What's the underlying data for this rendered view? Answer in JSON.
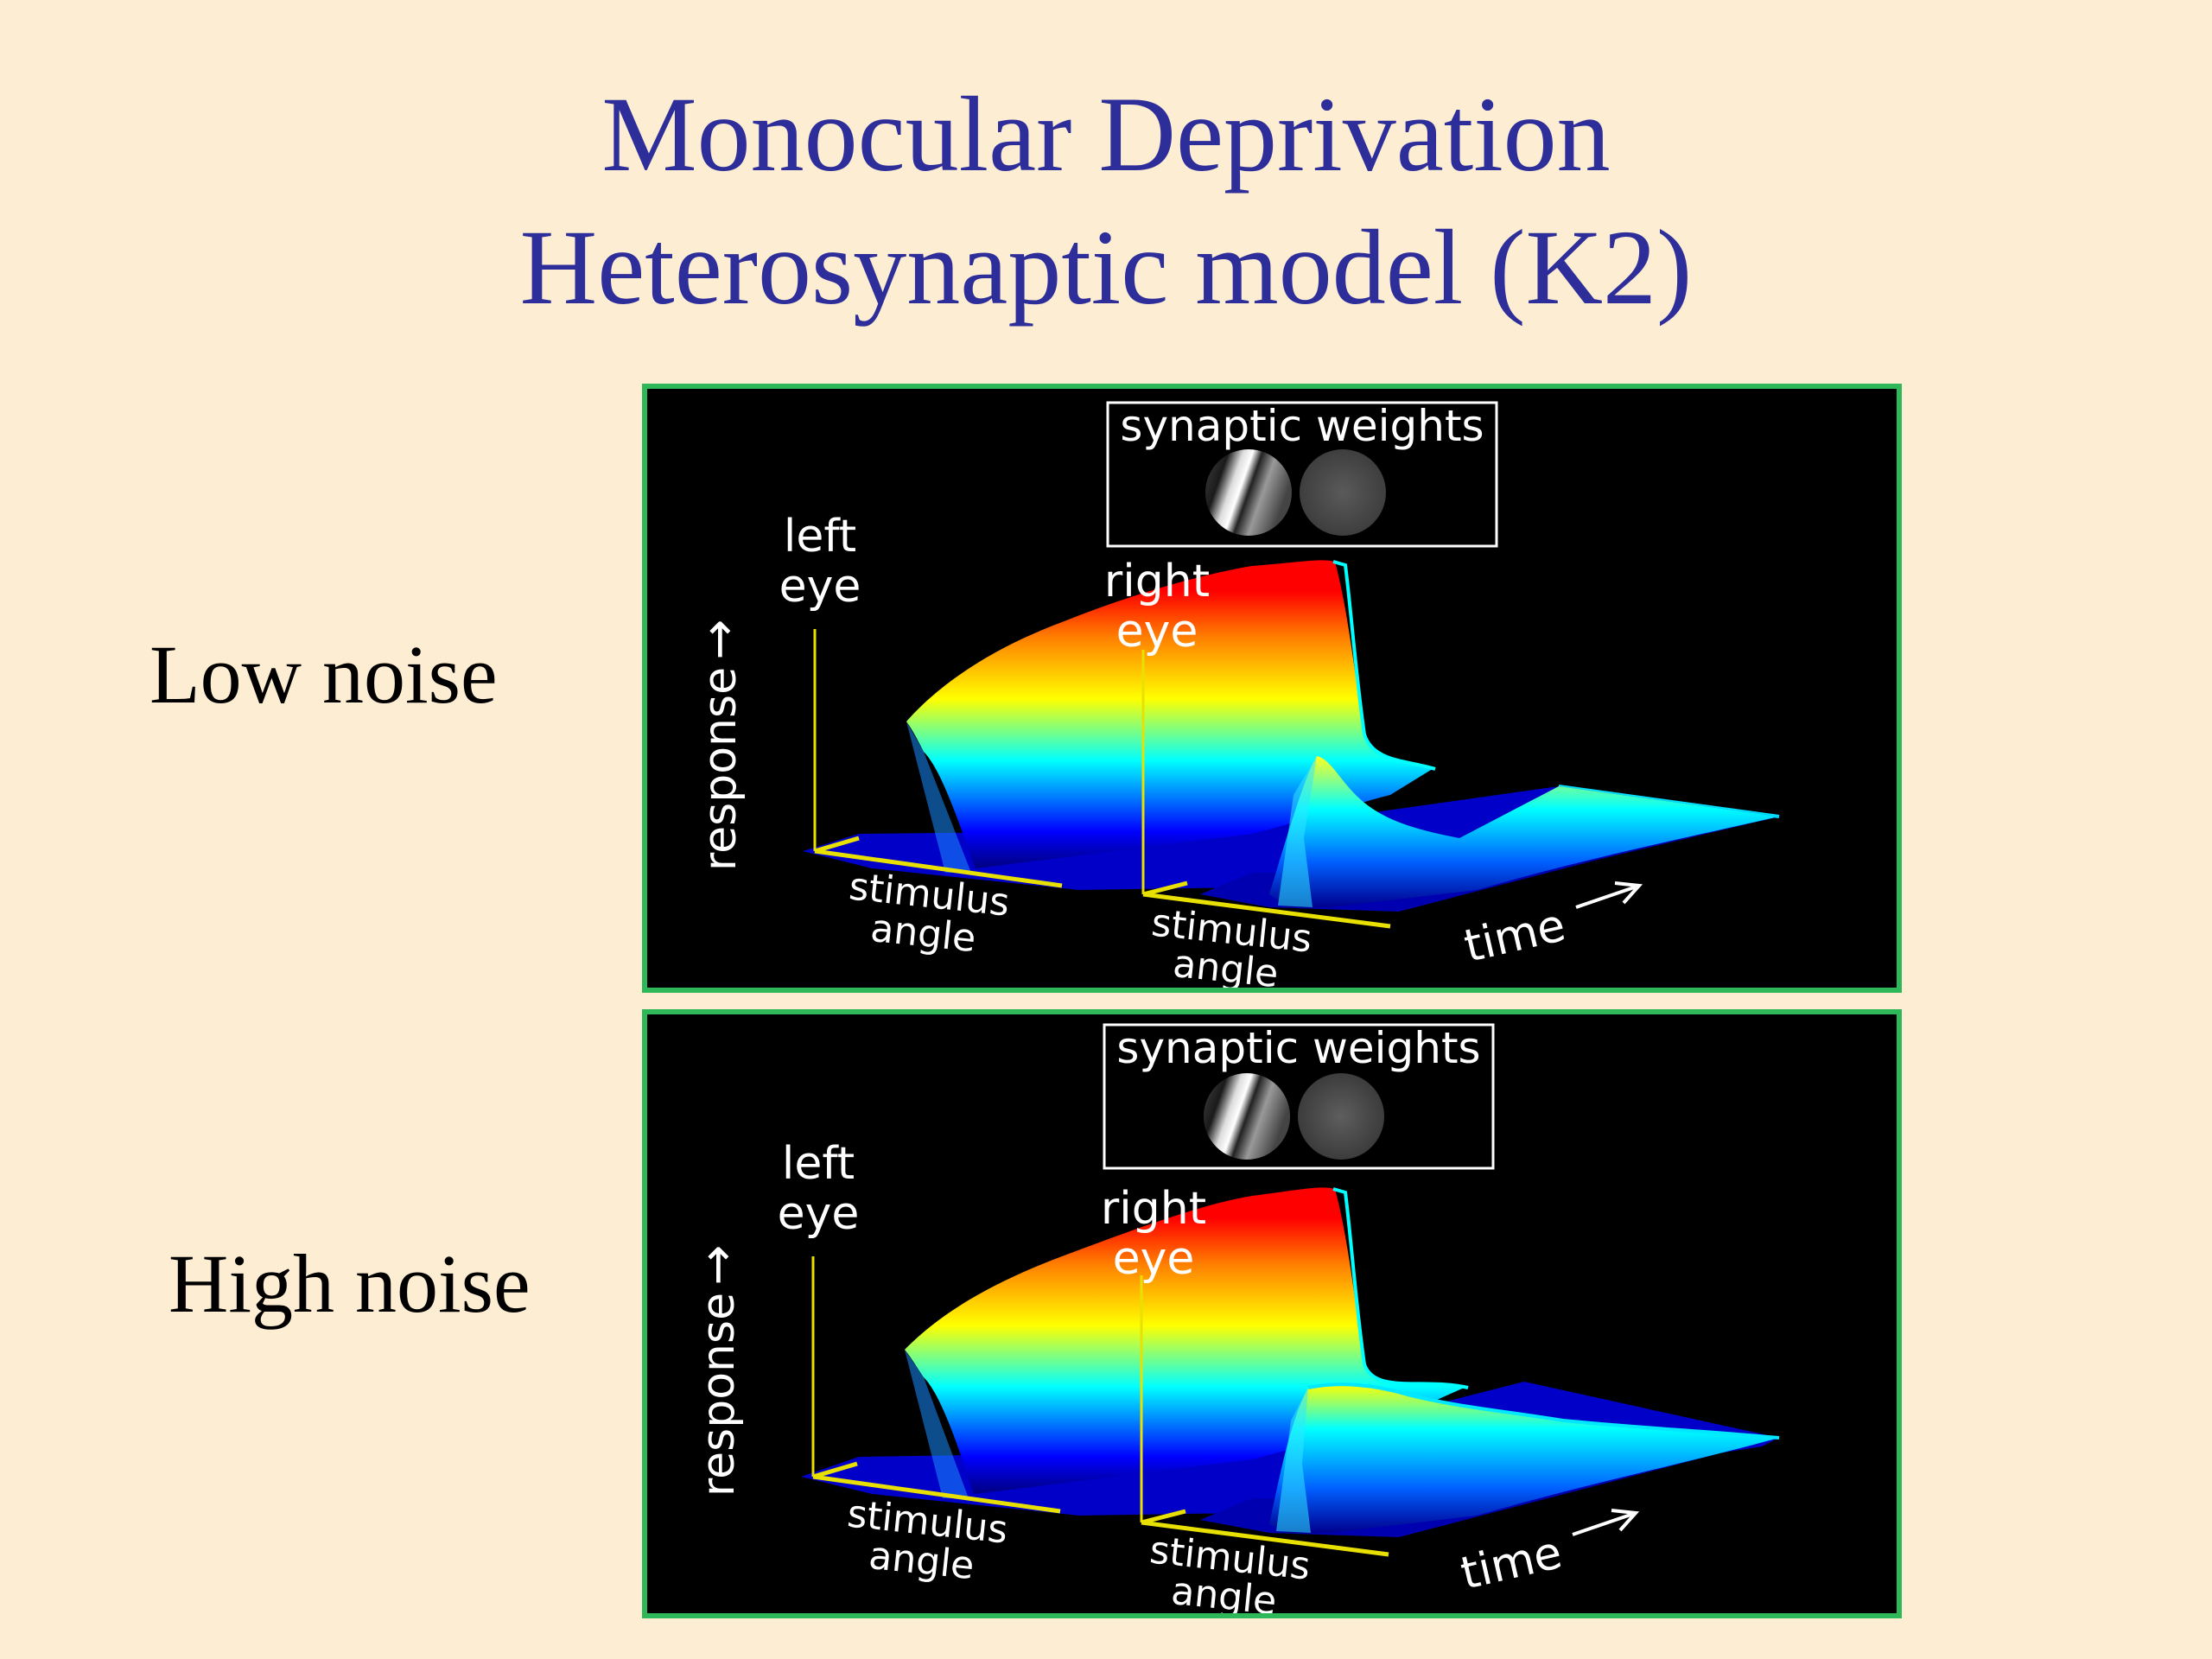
{
  "title": {
    "line1": "Monocular Deprivation",
    "line2": "Heterosynaptic model (K2)"
  },
  "panels": [
    {
      "row_label": "Low noise",
      "weights_label": "synaptic weights",
      "axis_response": "response",
      "left_eye_label_1": "left",
      "left_eye_label_2": "eye",
      "right_eye_label_1": "right",
      "right_eye_label_2": "eye",
      "stimulus_label_1": "stimulus",
      "stimulus_label_2": "angle",
      "time_label": "time"
    },
    {
      "row_label": "High noise",
      "weights_label": "synaptic weights",
      "axis_response": "response",
      "left_eye_label_1": "left",
      "left_eye_label_2": "eye",
      "right_eye_label_1": "right",
      "right_eye_label_2": "eye",
      "stimulus_label_1": "stimulus",
      "stimulus_label_2": "angle",
      "time_label": "time"
    }
  ],
  "colors": {
    "title": "#2e2e9a",
    "background": "#fdedd2",
    "panel_border": "#2fb85a",
    "axis": "#e8e000"
  }
}
